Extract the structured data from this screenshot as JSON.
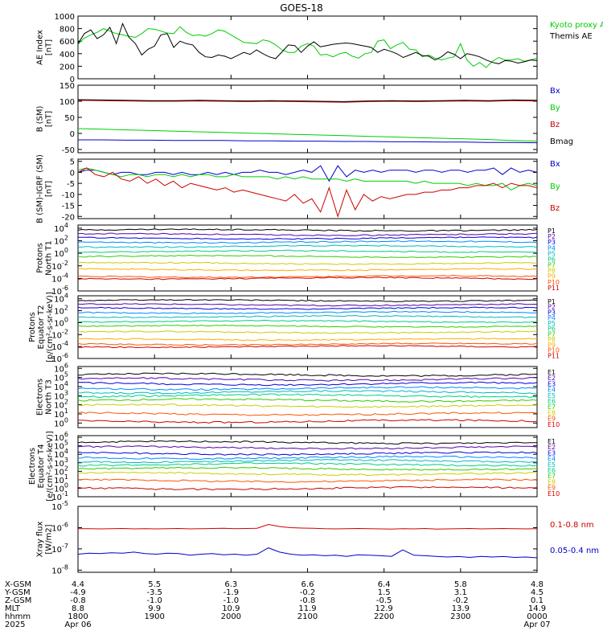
{
  "title": "GOES-18",
  "chart_data": [
    {
      "id": "ae",
      "type": "line",
      "ylabel": [
        "AE Index",
        "[nT]"
      ],
      "ylim": [
        0,
        1000
      ],
      "yticks": [
        0,
        200,
        400,
        600,
        800,
        1000
      ],
      "yticklabels": [
        "0",
        "200",
        "400",
        "600",
        "800",
        "1000"
      ],
      "series": [
        {
          "name": "Kyoto proxy AE",
          "color": "#00cc00",
          "values": [
            550,
            650,
            700,
            740,
            800,
            760,
            720,
            700,
            680,
            660,
            720,
            800,
            790,
            760,
            730,
            720,
            830,
            740,
            690,
            700,
            680,
            720,
            780,
            760,
            700,
            640,
            580,
            570,
            560,
            620,
            600,
            540,
            460,
            420,
            420,
            520,
            560,
            520,
            380,
            390,
            350,
            400,
            420,
            360,
            330,
            400,
            420,
            600,
            620,
            480,
            540,
            580,
            470,
            460,
            350,
            380,
            330,
            300,
            330,
            350,
            560,
            300,
            200,
            260,
            180,
            280,
            340,
            300,
            300,
            320,
            280,
            300,
            330
          ]
        },
        {
          "name": "Themis AE",
          "color": "#000000",
          "values": [
            560,
            720,
            780,
            640,
            700,
            820,
            560,
            880,
            660,
            560,
            380,
            470,
            520,
            700,
            720,
            500,
            600,
            560,
            540,
            420,
            350,
            340,
            380,
            360,
            320,
            370,
            420,
            390,
            460,
            400,
            350,
            320,
            430,
            540,
            530,
            420,
            520,
            590,
            510,
            530,
            550,
            560,
            570,
            560,
            540,
            520,
            500,
            420,
            470,
            440,
            400,
            340,
            380,
            420,
            370,
            360,
            300,
            350,
            430,
            390,
            320,
            400,
            380,
            350,
            300,
            260,
            240,
            290,
            280,
            250,
            270,
            300,
            290
          ]
        }
      ]
    },
    {
      "id": "bsm",
      "type": "line",
      "ylabel": [
        "B (SM)",
        "[nT]"
      ],
      "ylim": [
        -60,
        150
      ],
      "yticks": [
        -50,
        0,
        50,
        100,
        150
      ],
      "yticklabels": [
        "-50",
        "0",
        "50",
        "100",
        "150"
      ],
      "series": [
        {
          "name": "Bx",
          "color": "#0000cc",
          "values": [
            -20,
            -20,
            -21,
            -21,
            -22,
            -22,
            -22,
            -23,
            -23,
            -24,
            -24,
            -25,
            -25,
            -26,
            -26,
            -27,
            -27,
            -28,
            -28,
            -29
          ]
        },
        {
          "name": "By",
          "color": "#00cc00",
          "values": [
            15,
            13,
            11,
            9,
            7,
            5,
            3,
            1,
            -1,
            -3,
            -5,
            -7,
            -9,
            -11,
            -13,
            -15,
            -17,
            -19,
            -22,
            -24
          ]
        },
        {
          "name": "Bz",
          "color": "#cc0000",
          "values": [
            103,
            102,
            101,
            100,
            100,
            101,
            100,
            99,
            100,
            99,
            98,
            97,
            99,
            100,
            99,
            100,
            101,
            100,
            102,
            101
          ]
        },
        {
          "name": "Bmag",
          "color": "#000000",
          "values": [
            105,
            104,
            103,
            102,
            102,
            103,
            102,
            101,
            102,
            101,
            100,
            99,
            101,
            102,
            101,
            102,
            103,
            102,
            104,
            103
          ]
        }
      ]
    },
    {
      "id": "bigrf",
      "type": "line",
      "ylabel": [
        "B (SM)-IGRF (SM)",
        "[nT]"
      ],
      "ylim": [
        -21,
        6
      ],
      "yticks": [
        -20,
        -15,
        -10,
        -5,
        0,
        5
      ],
      "yticklabels": [
        "-20",
        "-15",
        "-10",
        "-5",
        "0",
        "5"
      ],
      "series": [
        {
          "name": "Bx",
          "color": "#0000cc",
          "values": [
            0,
            1,
            1,
            0,
            -1,
            0,
            0,
            -1,
            -1,
            0,
            0,
            -1,
            0,
            -1,
            -1,
            0,
            -1,
            0,
            -1,
            0,
            0,
            1,
            0,
            0,
            -1,
            0,
            1,
            0,
            3,
            -4,
            3,
            -2,
            1,
            0,
            1,
            0,
            1,
            1,
            1,
            0,
            1,
            1,
            0,
            1,
            1,
            0,
            1,
            1,
            2,
            -1,
            2,
            0,
            1,
            0
          ]
        },
        {
          "name": "By",
          "color": "#00cc00",
          "values": [
            1,
            2,
            1,
            0,
            -1,
            -2,
            -1,
            -1,
            -2,
            -1,
            -1,
            -2,
            -1,
            -2,
            -1,
            -1,
            -2,
            -2,
            -1,
            -2,
            -2,
            -2,
            -2,
            -3,
            -2,
            -3,
            -2,
            -3,
            -3,
            -3,
            -3,
            -4,
            -3,
            -4,
            -4,
            -4,
            -4,
            -4,
            -4,
            -5,
            -4,
            -5,
            -5,
            -5,
            -5,
            -6,
            -5,
            -6,
            -6,
            -5,
            -8,
            -6,
            -5,
            -6
          ]
        },
        {
          "name": "Bz",
          "color": "#cc0000",
          "values": [
            0,
            2,
            -1,
            -2,
            0,
            -3,
            -4,
            -2,
            -5,
            -3,
            -6,
            -4,
            -7,
            -5,
            -6,
            -7,
            -8,
            -7,
            -9,
            -8,
            -9,
            -10,
            -11,
            -12,
            -13,
            -10,
            -14,
            -12,
            -18,
            -7,
            -20,
            -8,
            -17,
            -10,
            -13,
            -11,
            -12,
            -11,
            -10,
            -10,
            -9,
            -9,
            -8,
            -8,
            -7,
            -7,
            -6,
            -6,
            -5,
            -7,
            -5,
            -6,
            -6,
            -7
          ]
        }
      ]
    },
    {
      "id": "pn",
      "type": "line",
      "log": true,
      "ylabel": [
        "Protons",
        "North T1"
      ],
      "ylim": [
        -6,
        4.5
      ],
      "yticks": [
        -6,
        -4,
        -2,
        0,
        2,
        4
      ],
      "yticklabels": [
        "10",
        "10",
        "10",
        "10",
        "10",
        "10"
      ],
      "ytickexps": [
        "-6",
        "-4",
        "-2",
        "0",
        "2",
        "4"
      ],
      "series": [
        {
          "name": "P1",
          "color": "#000000",
          "base": 3.7
        },
        {
          "name": "P2",
          "color": "#5500aa",
          "base": 3.0
        },
        {
          "name": "P3",
          "color": "#0000dd",
          "base": 2.4
        },
        {
          "name": "P4",
          "color": "#0088ff",
          "base": 1.8
        },
        {
          "name": "P5",
          "color": "#00bbbb",
          "base": 1.1
        },
        {
          "name": "P6",
          "color": "#00cc88",
          "base": 0.3
        },
        {
          "name": "P7",
          "color": "#33cc00",
          "base": -0.5
        },
        {
          "name": "P8",
          "color": "#cccc00",
          "base": -1.6
        },
        {
          "name": "P9",
          "color": "#ffaa00",
          "base": -2.6
        },
        {
          "name": "P10",
          "color": "#ff5500",
          "base": -3.7
        },
        {
          "name": "P11",
          "color": "#cc0000",
          "base": -4.0
        }
      ]
    },
    {
      "id": "pe",
      "type": "line",
      "log": true,
      "ylabel": [
        "Protons",
        "Equator T2",
        "[p/(cm²-s-sr-keV)]"
      ],
      "ylim": [
        -6,
        4.5
      ],
      "yticks": [
        -6,
        -4,
        -2,
        0,
        2,
        4
      ],
      "yticklabels": [
        "10",
        "10",
        "10",
        "10",
        "10",
        "10"
      ],
      "ytickexps": [
        "-6",
        "-4",
        "-2",
        "0",
        "2",
        "4"
      ],
      "series": [
        {
          "name": "P1",
          "color": "#000000",
          "base": 3.7
        },
        {
          "name": "P2",
          "color": "#5500aa",
          "base": 3.0
        },
        {
          "name": "P3",
          "color": "#0000dd",
          "base": 2.4
        },
        {
          "name": "P4",
          "color": "#0088ff",
          "base": 1.7
        },
        {
          "name": "P5",
          "color": "#00bbbb",
          "base": 1.0
        },
        {
          "name": "P6",
          "color": "#00cc88",
          "base": 0.2
        },
        {
          "name": "P7",
          "color": "#33cc00",
          "base": -0.6
        },
        {
          "name": "P8",
          "color": "#cccc00",
          "base": -1.6
        },
        {
          "name": "P9",
          "color": "#ffaa00",
          "base": -2.8
        },
        {
          "name": "P10",
          "color": "#ff5500",
          "base": -3.6
        },
        {
          "name": "P11",
          "color": "#cc0000",
          "base": -4.0
        }
      ]
    },
    {
      "id": "en",
      "type": "line",
      "log": true,
      "ylabel": [
        "Electrons",
        "North T3"
      ],
      "ylim": [
        -0.5,
        6.2
      ],
      "yticks": [
        0,
        1,
        2,
        3,
        4,
        5,
        6
      ],
      "yticklabels": [
        "10",
        "10",
        "10",
        "10",
        "10",
        "10",
        "10"
      ],
      "ytickexps": [
        "0",
        "1",
        "2",
        "3",
        "4",
        "5",
        "6"
      ],
      "series": [
        {
          "name": "E1",
          "color": "#000000",
          "base": 5.3
        },
        {
          "name": "E2",
          "color": "#5500aa",
          "base": 4.8
        },
        {
          "name": "E3",
          "color": "#0000dd",
          "base": 4.3
        },
        {
          "name": "E4",
          "color": "#0088ff",
          "base": 3.8
        },
        {
          "name": "E5",
          "color": "#00bbbb",
          "base": 3.4
        },
        {
          "name": "E6",
          "color": "#00cc88",
          "base": 3.0
        },
        {
          "name": "E7",
          "color": "#33cc00",
          "base": 2.5
        },
        {
          "name": "E8",
          "color": "#cccc00",
          "base": 1.9
        },
        {
          "name": "E9",
          "color": "#ff5500",
          "base": 1.0
        },
        {
          "name": "E10",
          "color": "#cc0000",
          "base": 0.2
        }
      ]
    },
    {
      "id": "ee",
      "type": "line",
      "log": true,
      "ylabel": [
        "Electrons",
        "Equator T4",
        "[e/(cm²-s-sr-keV)]"
      ],
      "ylim": [
        -1,
        6.2
      ],
      "yticks": [
        -1,
        0,
        1,
        2,
        3,
        4,
        5,
        6
      ],
      "yticklabels": [
        "10",
        "10",
        "10",
        "10",
        "10",
        "10",
        "10",
        "10"
      ],
      "ytickexps": [
        "-1",
        "0",
        "1",
        "2",
        "3",
        "4",
        "5",
        "6"
      ],
      "series": [
        {
          "name": "E1",
          "color": "#000000",
          "base": 5.4
        },
        {
          "name": "E2",
          "color": "#5500aa",
          "base": 4.8
        },
        {
          "name": "E3",
          "color": "#0000dd",
          "base": 4.1
        },
        {
          "name": "E4",
          "color": "#0088ff",
          "base": 3.6
        },
        {
          "name": "E5",
          "color": "#00bbbb",
          "base": 3.2
        },
        {
          "name": "E6",
          "color": "#00cc88",
          "base": 2.8
        },
        {
          "name": "E7",
          "color": "#33cc00",
          "base": 2.3
        },
        {
          "name": "E8",
          "color": "#cccc00",
          "base": 1.7
        },
        {
          "name": "E9",
          "color": "#ff5500",
          "base": 0.9
        },
        {
          "name": "E10",
          "color": "#cc0000",
          "base": 0.0
        }
      ]
    },
    {
      "id": "xray",
      "type": "line",
      "log": true,
      "ylabel": [
        "Xray flux",
        "[W/m2]"
      ],
      "ylim": [
        -8.1,
        -5
      ],
      "yticks": [
        -8,
        -7,
        -6,
        -5
      ],
      "yticklabels": [
        "10",
        "10",
        "10",
        "10"
      ],
      "ytickexps": [
        "-8",
        "-7",
        "-6",
        "-5"
      ],
      "series": [
        {
          "name": "0.1-0.8 nm",
          "color": "#cc0000",
          "values": [
            -6.05,
            -6.05,
            -6.06,
            -6.05,
            -6.04,
            -6.06,
            -6.05,
            -6.06,
            -6.05,
            -6.04,
            -6.06,
            -6.05,
            -6.04,
            -6.03,
            -6.05,
            -6.04,
            -6.03,
            -5.85,
            -5.95,
            -6.0,
            -6.02,
            -6.03,
            -6.05,
            -6.06,
            -6.05,
            -6.04,
            -6.05,
            -6.06,
            -6.07,
            -6.05,
            -6.06,
            -6.04,
            -6.07,
            -6.06,
            -6.05,
            -6.04,
            -6.06,
            -6.05,
            -6.04,
            -6.05,
            -6.06,
            -6.05
          ]
        },
        {
          "name": "0.05-0.4 nm",
          "color": "#0000cc",
          "values": [
            -7.25,
            -7.2,
            -7.22,
            -7.18,
            -7.2,
            -7.15,
            -7.22,
            -7.25,
            -7.2,
            -7.22,
            -7.3,
            -7.25,
            -7.22,
            -7.28,
            -7.25,
            -7.3,
            -7.25,
            -6.95,
            -7.15,
            -7.25,
            -7.3,
            -7.28,
            -7.32,
            -7.3,
            -7.35,
            -7.28,
            -7.3,
            -7.32,
            -7.35,
            -7.05,
            -7.3,
            -7.32,
            -7.35,
            -7.38,
            -7.36,
            -7.4,
            -7.35,
            -7.38,
            -7.36,
            -7.4,
            -7.38,
            -7.42
          ]
        }
      ]
    }
  ],
  "orbit": {
    "labels": [
      "X-GSM",
      "Y-GSM",
      "Z-GSM",
      "MLT",
      "hhmm",
      "2025"
    ],
    "columns": [
      [
        "4.4",
        "-4.9",
        "-0.8",
        "8.8",
        "1800",
        "Apr 06"
      ],
      [
        "5.5",
        "-3.5",
        "-1.0",
        "9.9",
        "1900",
        ""
      ],
      [
        "6.3",
        "-1.9",
        "-1.0",
        "10.9",
        "2000",
        ""
      ],
      [
        "6.6",
        "-0.2",
        "-0.8",
        "11.9",
        "2100",
        ""
      ],
      [
        "6.4",
        "1.5",
        "-0.5",
        "12.9",
        "2200",
        ""
      ],
      [
        "5.8",
        "3.1",
        "-0.2",
        "13.9",
        "2300",
        ""
      ],
      [
        "4.8",
        "4.5",
        "0.1",
        "14.9",
        "0000",
        "Apr 07"
      ]
    ]
  },
  "colors": {
    "text": "#000000",
    "background": "#ffffff"
  }
}
